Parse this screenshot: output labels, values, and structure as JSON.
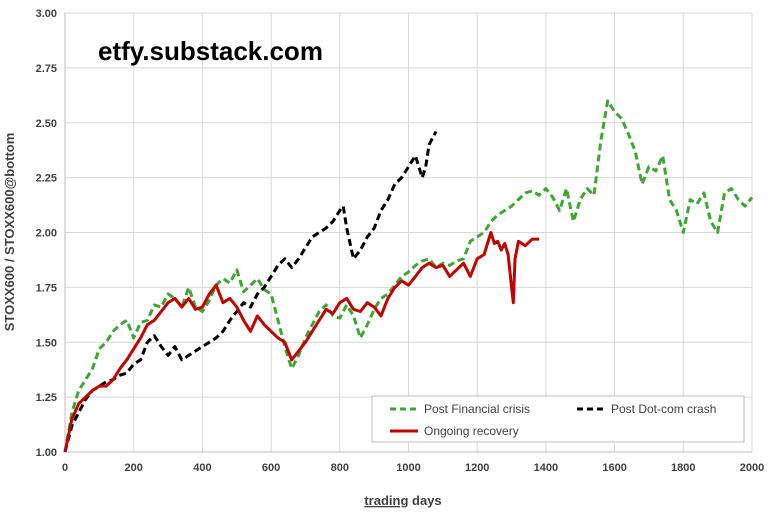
{
  "watermark": "etfy.substack.com",
  "chart_data": {
    "type": "line",
    "xlabel_underlined": "trading",
    "xlabel_rest": " days",
    "ylabel": "STOXX600 / STOXX600@bottom",
    "xlim": [
      0,
      2000
    ],
    "ylim": [
      1.0,
      3.0
    ],
    "x_ticks": [
      0,
      200,
      400,
      600,
      800,
      1000,
      1200,
      1400,
      1600,
      1800,
      2000
    ],
    "y_ticks": [
      "1.00",
      "1.25",
      "1.50",
      "1.75",
      "2.00",
      "2.25",
      "2.50",
      "2.75",
      "3.00"
    ],
    "y_tick_values": [
      1.0,
      1.25,
      1.5,
      1.75,
      2.0,
      2.25,
      2.5,
      2.75,
      3.0
    ],
    "grid": true,
    "legend_position": "bottom-right",
    "series": [
      {
        "name": "Post Financial crisis",
        "color": "#3fa535",
        "dash": "dashed",
        "points": [
          [
            0,
            1.0
          ],
          [
            20,
            1.18
          ],
          [
            40,
            1.28
          ],
          [
            60,
            1.33
          ],
          [
            80,
            1.38
          ],
          [
            100,
            1.47
          ],
          [
            120,
            1.5
          ],
          [
            140,
            1.55
          ],
          [
            160,
            1.58
          ],
          [
            180,
            1.6
          ],
          [
            200,
            1.52
          ],
          [
            220,
            1.59
          ],
          [
            240,
            1.6
          ],
          [
            260,
            1.67
          ],
          [
            280,
            1.66
          ],
          [
            300,
            1.72
          ],
          [
            320,
            1.7
          ],
          [
            340,
            1.66
          ],
          [
            360,
            1.75
          ],
          [
            380,
            1.66
          ],
          [
            400,
            1.64
          ],
          [
            420,
            1.69
          ],
          [
            440,
            1.76
          ],
          [
            460,
            1.79
          ],
          [
            480,
            1.77
          ],
          [
            500,
            1.83
          ],
          [
            520,
            1.73
          ],
          [
            540,
            1.76
          ],
          [
            560,
            1.79
          ],
          [
            580,
            1.74
          ],
          [
            600,
            1.72
          ],
          [
            620,
            1.6
          ],
          [
            640,
            1.48
          ],
          [
            660,
            1.38
          ],
          [
            680,
            1.44
          ],
          [
            700,
            1.52
          ],
          [
            720,
            1.58
          ],
          [
            740,
            1.64
          ],
          [
            760,
            1.67
          ],
          [
            780,
            1.62
          ],
          [
            800,
            1.61
          ],
          [
            820,
            1.67
          ],
          [
            840,
            1.62
          ],
          [
            860,
            1.52
          ],
          [
            880,
            1.58
          ],
          [
            900,
            1.65
          ],
          [
            920,
            1.7
          ],
          [
            940,
            1.72
          ],
          [
            960,
            1.76
          ],
          [
            980,
            1.8
          ],
          [
            1000,
            1.82
          ],
          [
            1020,
            1.85
          ],
          [
            1040,
            1.87
          ],
          [
            1060,
            1.88
          ],
          [
            1080,
            1.84
          ],
          [
            1100,
            1.86
          ],
          [
            1120,
            1.85
          ],
          [
            1140,
            1.87
          ],
          [
            1160,
            1.88
          ],
          [
            1180,
            1.96
          ],
          [
            1200,
            1.98
          ],
          [
            1220,
            2.0
          ],
          [
            1240,
            2.05
          ],
          [
            1260,
            2.08
          ],
          [
            1280,
            2.1
          ],
          [
            1300,
            2.12
          ],
          [
            1320,
            2.15
          ],
          [
            1340,
            2.18
          ],
          [
            1360,
            2.19
          ],
          [
            1380,
            2.17
          ],
          [
            1400,
            2.2
          ],
          [
            1420,
            2.16
          ],
          [
            1440,
            2.1
          ],
          [
            1460,
            2.2
          ],
          [
            1480,
            2.05
          ],
          [
            1500,
            2.15
          ],
          [
            1520,
            2.2
          ],
          [
            1540,
            2.17
          ],
          [
            1560,
            2.42
          ],
          [
            1580,
            2.6
          ],
          [
            1600,
            2.55
          ],
          [
            1620,
            2.52
          ],
          [
            1640,
            2.45
          ],
          [
            1660,
            2.37
          ],
          [
            1680,
            2.22
          ],
          [
            1700,
            2.3
          ],
          [
            1720,
            2.28
          ],
          [
            1740,
            2.35
          ],
          [
            1760,
            2.15
          ],
          [
            1780,
            2.1
          ],
          [
            1800,
            2.0
          ],
          [
            1820,
            2.15
          ],
          [
            1840,
            2.13
          ],
          [
            1860,
            2.18
          ],
          [
            1880,
            2.05
          ],
          [
            1900,
            2.0
          ],
          [
            1920,
            2.18
          ],
          [
            1940,
            2.2
          ],
          [
            1960,
            2.15
          ],
          [
            1980,
            2.12
          ],
          [
            2000,
            2.16
          ]
        ]
      },
      {
        "name": "Post Dot-com crash",
        "color": "#000000",
        "dash": "dashed",
        "points": [
          [
            0,
            1.0
          ],
          [
            20,
            1.12
          ],
          [
            40,
            1.18
          ],
          [
            60,
            1.24
          ],
          [
            80,
            1.28
          ],
          [
            100,
            1.3
          ],
          [
            120,
            1.32
          ],
          [
            140,
            1.33
          ],
          [
            160,
            1.35
          ],
          [
            180,
            1.36
          ],
          [
            200,
            1.4
          ],
          [
            220,
            1.42
          ],
          [
            240,
            1.5
          ],
          [
            260,
            1.53
          ],
          [
            280,
            1.48
          ],
          [
            300,
            1.44
          ],
          [
            320,
            1.48
          ],
          [
            340,
            1.42
          ],
          [
            360,
            1.44
          ],
          [
            380,
            1.46
          ],
          [
            400,
            1.48
          ],
          [
            420,
            1.5
          ],
          [
            440,
            1.52
          ],
          [
            460,
            1.55
          ],
          [
            480,
            1.6
          ],
          [
            500,
            1.64
          ],
          [
            520,
            1.68
          ],
          [
            540,
            1.66
          ],
          [
            560,
            1.72
          ],
          [
            580,
            1.75
          ],
          [
            600,
            1.8
          ],
          [
            620,
            1.85
          ],
          [
            640,
            1.88
          ],
          [
            660,
            1.84
          ],
          [
            680,
            1.88
          ],
          [
            700,
            1.93
          ],
          [
            720,
            1.98
          ],
          [
            740,
            2.0
          ],
          [
            760,
            2.02
          ],
          [
            780,
            2.05
          ],
          [
            800,
            2.1
          ],
          [
            810,
            2.12
          ],
          [
            820,
            2.02
          ],
          [
            830,
            1.95
          ],
          [
            840,
            1.88
          ],
          [
            860,
            1.92
          ],
          [
            880,
            1.98
          ],
          [
            900,
            2.02
          ],
          [
            920,
            2.1
          ],
          [
            940,
            2.15
          ],
          [
            960,
            2.22
          ],
          [
            980,
            2.25
          ],
          [
            1000,
            2.3
          ],
          [
            1020,
            2.35
          ],
          [
            1040,
            2.25
          ],
          [
            1050,
            2.3
          ],
          [
            1060,
            2.4
          ],
          [
            1080,
            2.46
          ]
        ]
      },
      {
        "name": "Ongoing recovery",
        "color": "#c00000",
        "dash": "solid",
        "points": [
          [
            0,
            1.0
          ],
          [
            20,
            1.15
          ],
          [
            40,
            1.22
          ],
          [
            60,
            1.25
          ],
          [
            80,
            1.28
          ],
          [
            100,
            1.3
          ],
          [
            120,
            1.3
          ],
          [
            140,
            1.33
          ],
          [
            160,
            1.38
          ],
          [
            180,
            1.42
          ],
          [
            200,
            1.47
          ],
          [
            220,
            1.52
          ],
          [
            240,
            1.58
          ],
          [
            260,
            1.6
          ],
          [
            280,
            1.64
          ],
          [
            300,
            1.68
          ],
          [
            320,
            1.7
          ],
          [
            340,
            1.66
          ],
          [
            360,
            1.7
          ],
          [
            380,
            1.65
          ],
          [
            400,
            1.66
          ],
          [
            420,
            1.72
          ],
          [
            440,
            1.76
          ],
          [
            460,
            1.68
          ],
          [
            480,
            1.7
          ],
          [
            500,
            1.66
          ],
          [
            520,
            1.6
          ],
          [
            540,
            1.55
          ],
          [
            560,
            1.62
          ],
          [
            580,
            1.58
          ],
          [
            600,
            1.55
          ],
          [
            620,
            1.52
          ],
          [
            640,
            1.5
          ],
          [
            660,
            1.42
          ],
          [
            680,
            1.46
          ],
          [
            700,
            1.5
          ],
          [
            720,
            1.55
          ],
          [
            740,
            1.6
          ],
          [
            760,
            1.65
          ],
          [
            780,
            1.63
          ],
          [
            800,
            1.68
          ],
          [
            820,
            1.7
          ],
          [
            840,
            1.65
          ],
          [
            860,
            1.64
          ],
          [
            880,
            1.68
          ],
          [
            900,
            1.66
          ],
          [
            920,
            1.62
          ],
          [
            940,
            1.7
          ],
          [
            960,
            1.75
          ],
          [
            980,
            1.78
          ],
          [
            1000,
            1.76
          ],
          [
            1020,
            1.8
          ],
          [
            1040,
            1.84
          ],
          [
            1060,
            1.86
          ],
          [
            1080,
            1.84
          ],
          [
            1100,
            1.85
          ],
          [
            1120,
            1.8
          ],
          [
            1140,
            1.83
          ],
          [
            1160,
            1.86
          ],
          [
            1180,
            1.8
          ],
          [
            1200,
            1.88
          ],
          [
            1220,
            1.9
          ],
          [
            1240,
            2.0
          ],
          [
            1250,
            1.95
          ],
          [
            1260,
            1.96
          ],
          [
            1270,
            1.92
          ],
          [
            1280,
            1.95
          ],
          [
            1290,
            1.9
          ],
          [
            1300,
            1.75
          ],
          [
            1305,
            1.68
          ],
          [
            1310,
            1.88
          ],
          [
            1320,
            1.96
          ],
          [
            1340,
            1.94
          ],
          [
            1360,
            1.97
          ],
          [
            1380,
            1.97
          ]
        ]
      }
    ]
  }
}
